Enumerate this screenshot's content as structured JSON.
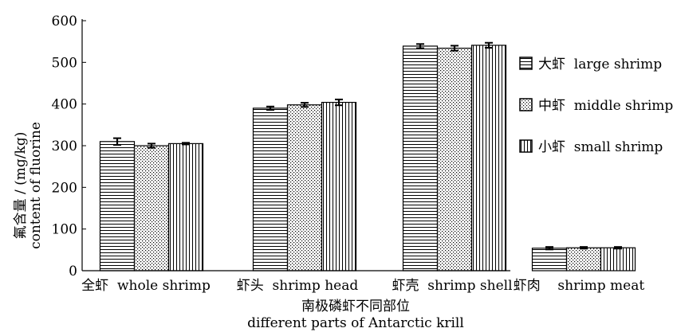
{
  "chart_data": {
    "type": "bar",
    "categories": [
      "全虾  whole shrimp",
      "虾头  shrimp head",
      "虾壳  shrimp shell",
      "虾肉    shrimp meat"
    ],
    "series": [
      {
        "name": "大虾  large shrimp",
        "values": [
          310,
          390,
          539,
          54
        ],
        "errors": [
          8,
          4,
          5,
          3
        ],
        "pattern": "horizontal"
      },
      {
        "name": "中虾  middle shrimp",
        "values": [
          300,
          398,
          534,
          55
        ],
        "errors": [
          5,
          5,
          6,
          2
        ],
        "pattern": "dots"
      },
      {
        "name": "小虾  small shrimp",
        "values": [
          305,
          404,
          541,
          55
        ],
        "errors": [
          2,
          7,
          6,
          2
        ],
        "pattern": "vertical"
      }
    ],
    "ylabel_lines": [
      "氟含量 / (mg/kg)",
      "content of fluorine"
    ],
    "xlabel_lines": [
      "南极磷虾不同部位",
      "different parts of Antarctic krill"
    ],
    "ylim": [
      0,
      600
    ],
    "yticks": [
      0,
      100,
      200,
      300,
      400,
      500,
      600
    ],
    "legend_position": "right",
    "grid": false
  }
}
